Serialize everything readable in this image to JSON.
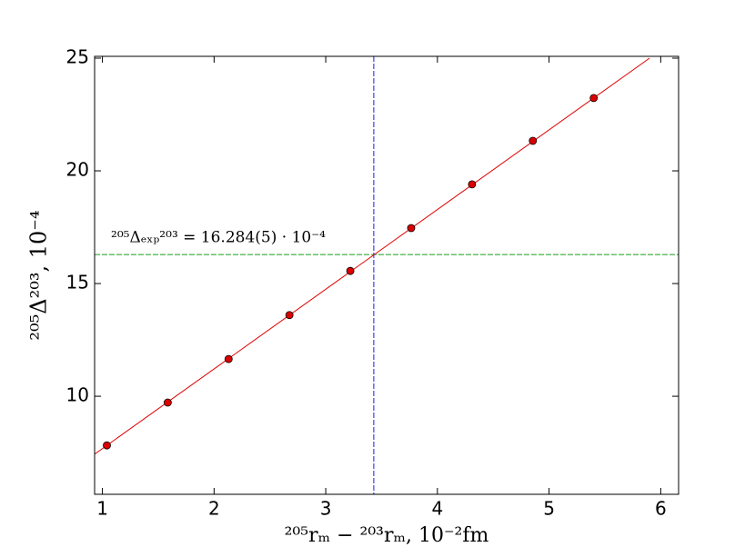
{
  "chart_data": {
    "type": "scatter",
    "x_label": "²⁰⁵rₘ − ²⁰³rₘ, 10⁻²fm",
    "y_label": "²⁰⁵Δ²⁰³, 10⁻⁴",
    "annotation": "²⁰⁵Δₑₓₚ²⁰³ = 16.284(5) · 10⁻⁴",
    "points": {
      "color": "#dd0000",
      "x": [
        1.04,
        1.585,
        2.13,
        2.675,
        3.22,
        3.765,
        4.31,
        4.855,
        5.4
      ],
      "y": [
        7.82,
        9.72,
        11.65,
        13.6,
        15.56,
        17.46,
        19.4,
        21.33,
        23.23
      ]
    },
    "fit": {
      "color": "#e00000",
      "x": [
        0.93,
        5.9
      ],
      "y": [
        7.43,
        25
      ]
    },
    "vline": {
      "value": 3.43,
      "color": "#3a3aff"
    },
    "hline": {
      "value": 16.284,
      "color": "#33aa33"
    },
    "xlim": [
      0.93,
      6.16
    ],
    "ylim": [
      5.65,
      25.08
    ],
    "xticks": [
      1,
      2,
      3,
      4,
      5,
      6
    ],
    "yticks": [
      10,
      15,
      20,
      25
    ]
  }
}
